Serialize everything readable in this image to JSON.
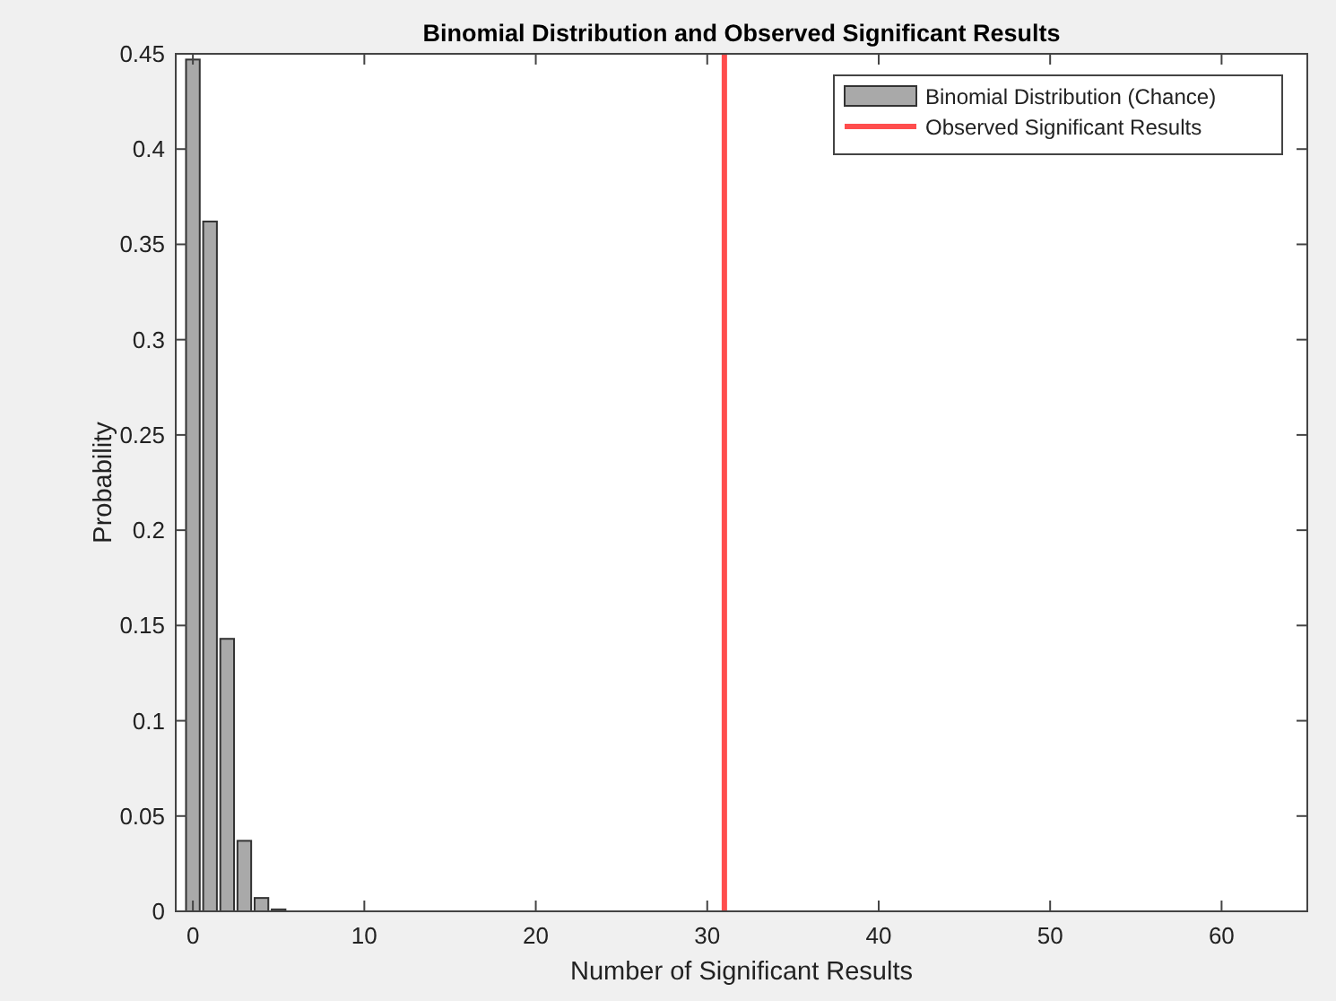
{
  "chart_data": {
    "type": "bar",
    "title": "Binomial Distribution and Observed Significant Results",
    "xlabel": "Number of Significant Results",
    "ylabel": "Probability",
    "x": [
      0,
      1,
      2,
      3,
      4,
      5,
      6,
      7,
      8,
      9
    ],
    "series": [
      {
        "name": "Binomial Distribution (Chance)",
        "color": "#a9a9a9",
        "values": [
          0.447,
          0.362,
          0.143,
          0.037,
          0.007,
          0.001,
          0,
          0,
          0,
          0
        ]
      },
      {
        "name": "Observed Significant Results",
        "type": "line",
        "color": "#ff4d4d",
        "x": [
          31,
          31
        ],
        "values": [
          0,
          0.45
        ]
      }
    ],
    "xlim": [
      -1,
      65
    ],
    "xticks": [
      0,
      10,
      20,
      30,
      40,
      50,
      60
    ],
    "ylim": [
      0,
      0.45
    ],
    "yticks": [
      0,
      0.05,
      0.1,
      0.15,
      0.2,
      0.25,
      0.3,
      0.35,
      0.4,
      0.45
    ],
    "grid": false,
    "legend": "top right"
  }
}
